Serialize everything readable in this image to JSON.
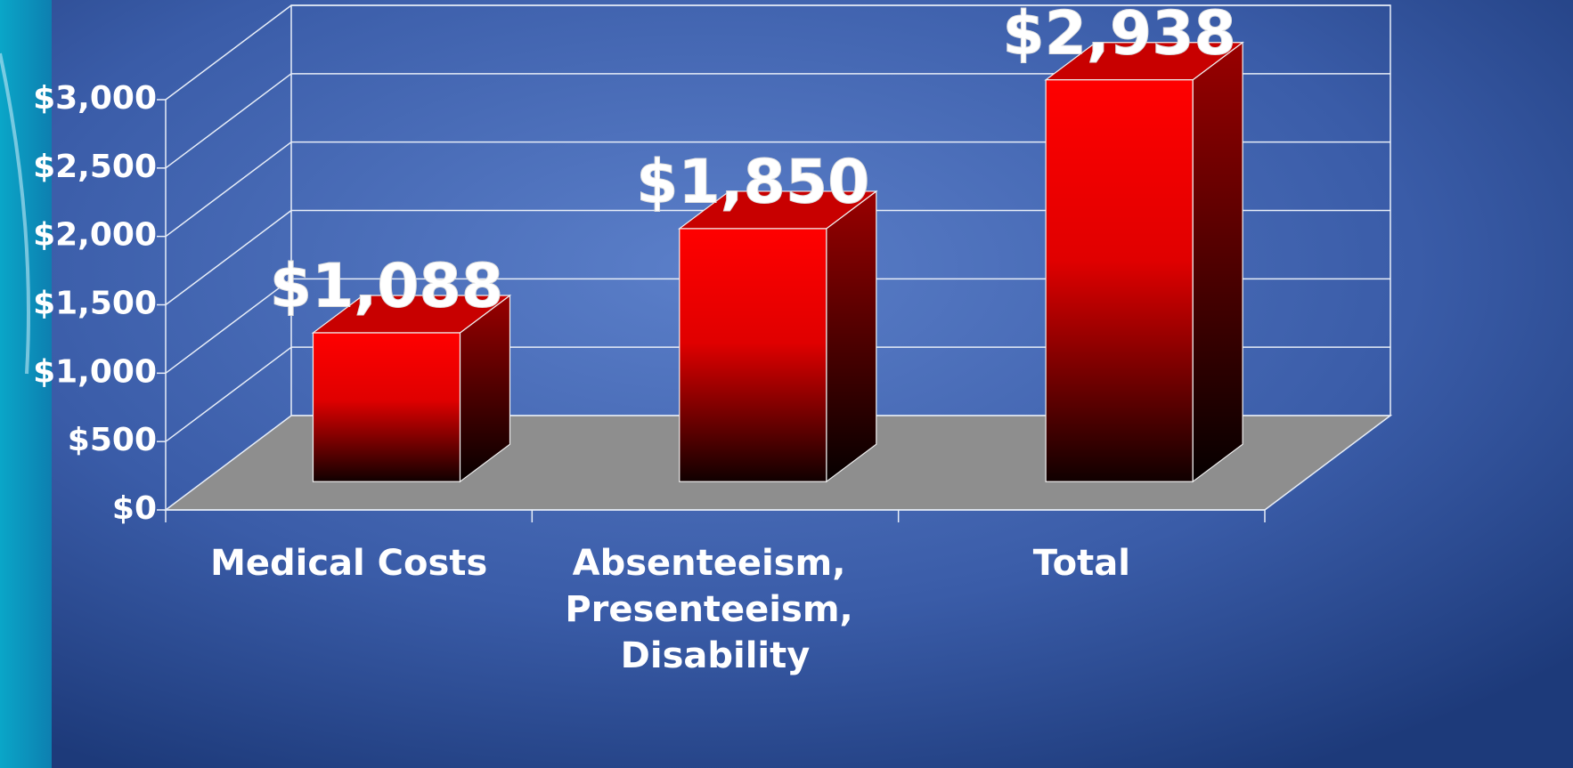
{
  "chart_data": {
    "type": "bar3d",
    "categories": [
      "Medical Costs",
      "Absenteeism, Presenteeism, Disability",
      "Total"
    ],
    "values": [
      1088,
      1850,
      2938
    ],
    "value_labels": [
      "$1,088",
      "$1,850",
      "$2,938"
    ],
    "color": "#ff0000",
    "ylim": [
      0,
      3000
    ],
    "yticks": [
      {
        "value": 0,
        "label": "$0"
      },
      {
        "value": 500,
        "label": "$500"
      },
      {
        "value": 1000,
        "label": "$1,000"
      },
      {
        "value": 1500,
        "label": "$1,500"
      },
      {
        "value": 2000,
        "label": "$2,000"
      },
      {
        "value": 2500,
        "label": "$2,500"
      },
      {
        "value": 3000,
        "label": "$3,000"
      }
    ],
    "grid": true
  }
}
